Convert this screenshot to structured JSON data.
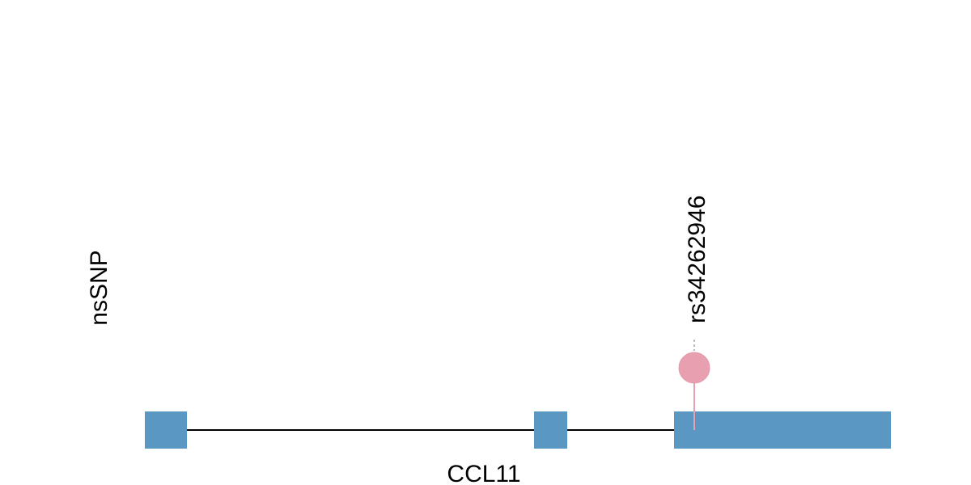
{
  "track_label": "nsSNP",
  "gene": {
    "name": "CCL11",
    "exon_color": "#5b97c3",
    "intron_color": "#000000"
  },
  "snp": {
    "id": "rs34262946",
    "marker_color": "#e8a0b0",
    "stem_color": "#e8a0b0",
    "connector_color": "#bbbbbb"
  }
}
